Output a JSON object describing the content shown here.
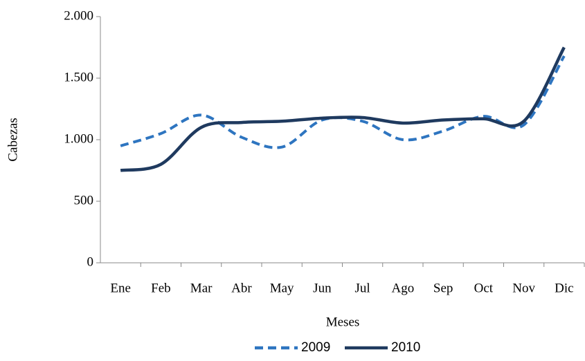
{
  "chart_data": {
    "type": "line",
    "x_label": "Meses",
    "y_label": "Cabezas",
    "categories": [
      "Ene",
      "Feb",
      "Mar",
      "Abr",
      "May",
      "Jun",
      "Jul",
      "Ago",
      "Sep",
      "Oct",
      "Nov",
      "Dic"
    ],
    "series": [
      {
        "name": "2009",
        "color": "#2e75c0",
        "dashed": true,
        "values": [
          950,
          1050,
          1200,
          1020,
          940,
          1160,
          1150,
          1000,
          1070,
          1190,
          1120,
          1680
        ]
      },
      {
        "name": "2010",
        "color": "#1f3a5f",
        "dashed": false,
        "values": [
          750,
          800,
          1100,
          1140,
          1150,
          1175,
          1180,
          1135,
          1160,
          1170,
          1150,
          1750
        ]
      }
    ],
    "ylim": [
      0,
      2000
    ],
    "yticks": [
      0,
      500,
      {
        "value": 1000,
        "label": "1.000"
      },
      {
        "value": 1500,
        "label": "1.500"
      },
      {
        "value": 2000,
        "label": "2.000"
      }
    ],
    "legend": "bottom"
  }
}
